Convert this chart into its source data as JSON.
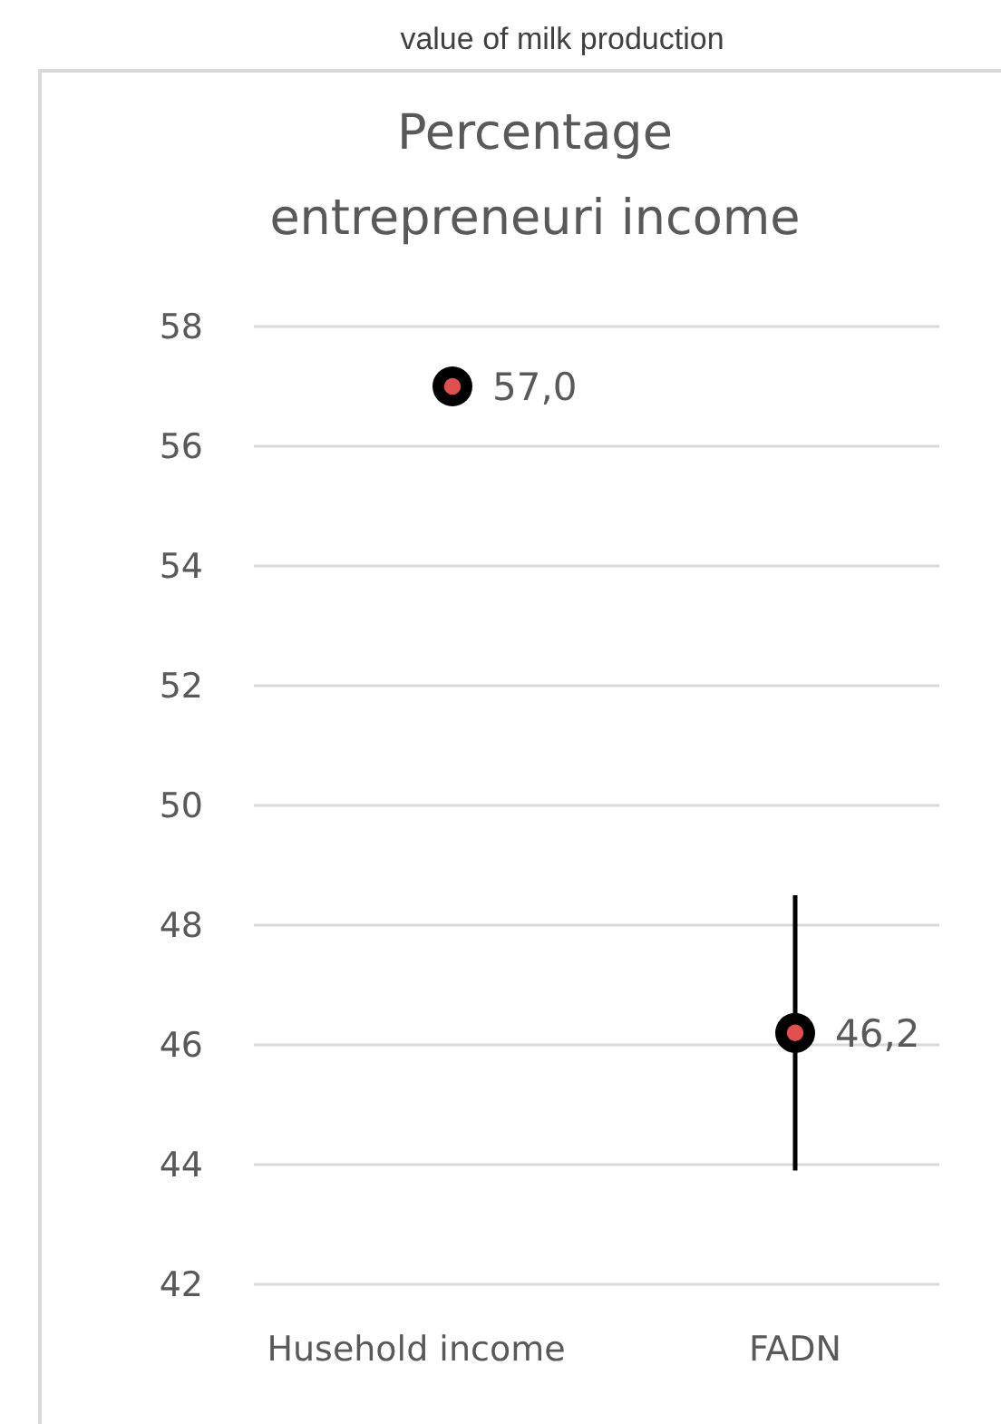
{
  "chart_data": {
    "type": "scatter",
    "title": "value of milk production",
    "subtitle": "Percentage entrepreneuri income",
    "categories": [
      "Husehold income",
      "FADN"
    ],
    "series": [
      {
        "color": "#000000",
        "values": [
          57.0,
          46.2
        ],
        "errors": [
          null,
          2.3
        ],
        "value_labels": [
          "57,0",
          "46,2"
        ]
      }
    ],
    "ylim": [
      42,
      58
    ],
    "yticks": [
      42,
      44,
      46,
      48,
      50,
      52,
      54,
      56,
      58
    ],
    "grid": "y",
    "marker": "circle"
  }
}
